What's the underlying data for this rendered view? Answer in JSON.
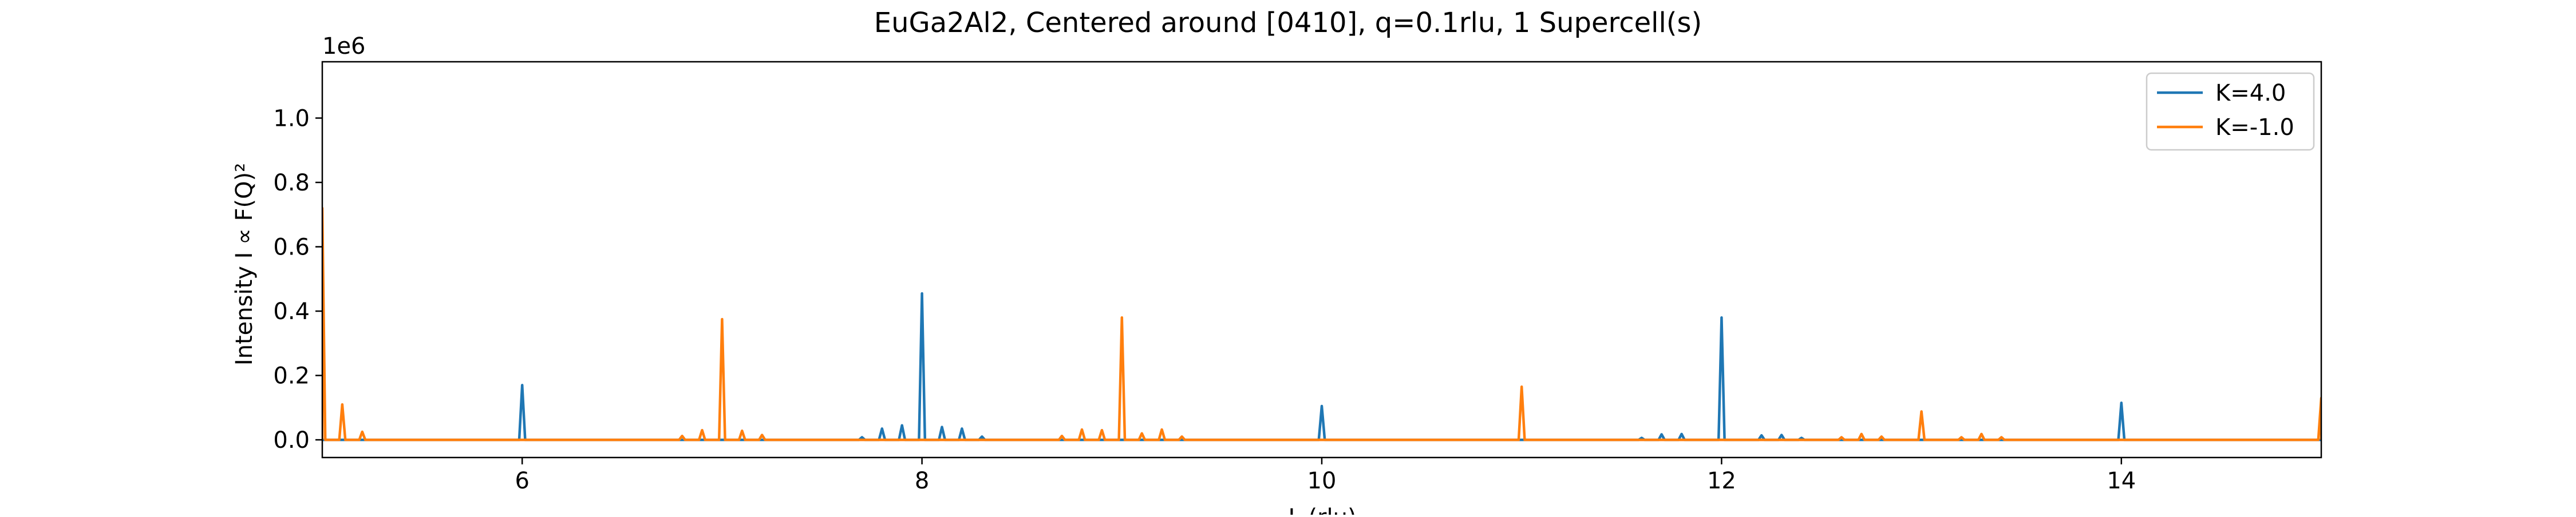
{
  "chart_data": {
    "type": "line",
    "title": "EuGa2Al2, Centered around [0410], q=0.1rlu, 1 Supercell(s)",
    "xlabel": "L (rlu)",
    "ylabel": "Intensity I ∝ F(Q)²",
    "y_offset_label": "1e6",
    "xlim": [
      5,
      15
    ],
    "ylim": [
      -55000,
      1175000
    ],
    "x_ticks": [
      6,
      8,
      10,
      12,
      14
    ],
    "x_tick_labels": [
      "6",
      "8",
      "10",
      "12",
      "14"
    ],
    "y_ticks": [
      0,
      0.2,
      0.4,
      0.6,
      0.8,
      1.0
    ],
    "y_tick_labels": [
      "0.0",
      "0.2",
      "0.4",
      "0.6",
      "0.8",
      "1.0"
    ],
    "y_tick_scale": 1000000,
    "grid": false,
    "legend_position": "top-right",
    "series": [
      {
        "name": "K=4.0",
        "color": "#1f77b4",
        "peaks": [
          [
            6.0,
            170000
          ],
          [
            7.7,
            8000
          ],
          [
            7.8,
            35000
          ],
          [
            7.9,
            45000
          ],
          [
            8.0,
            455000
          ],
          [
            8.1,
            40000
          ],
          [
            8.2,
            35000
          ],
          [
            8.3,
            10000
          ],
          [
            10.0,
            105000
          ],
          [
            11.6,
            6000
          ],
          [
            11.7,
            17000
          ],
          [
            11.8,
            18000
          ],
          [
            12.0,
            380000
          ],
          [
            12.2,
            14000
          ],
          [
            12.3,
            15000
          ],
          [
            12.4,
            6000
          ],
          [
            14.0,
            115000
          ]
        ]
      },
      {
        "name": "K=-1.0",
        "color": "#ff7f0e",
        "peaks": [
          [
            5.0,
            720000
          ],
          [
            5.1,
            110000
          ],
          [
            5.2,
            25000
          ],
          [
            6.8,
            12000
          ],
          [
            6.9,
            30000
          ],
          [
            7.0,
            375000
          ],
          [
            7.1,
            28000
          ],
          [
            7.2,
            15000
          ],
          [
            8.7,
            12000
          ],
          [
            8.8,
            32000
          ],
          [
            8.9,
            30000
          ],
          [
            9.0,
            380000
          ],
          [
            9.1,
            20000
          ],
          [
            9.2,
            32000
          ],
          [
            9.3,
            10000
          ],
          [
            11.0,
            165000
          ],
          [
            12.6,
            8000
          ],
          [
            12.7,
            18000
          ],
          [
            12.8,
            10000
          ],
          [
            13.0,
            88000
          ],
          [
            13.2,
            8000
          ],
          [
            13.3,
            18000
          ],
          [
            13.4,
            8000
          ],
          [
            15.0,
            130000
          ]
        ]
      }
    ]
  }
}
